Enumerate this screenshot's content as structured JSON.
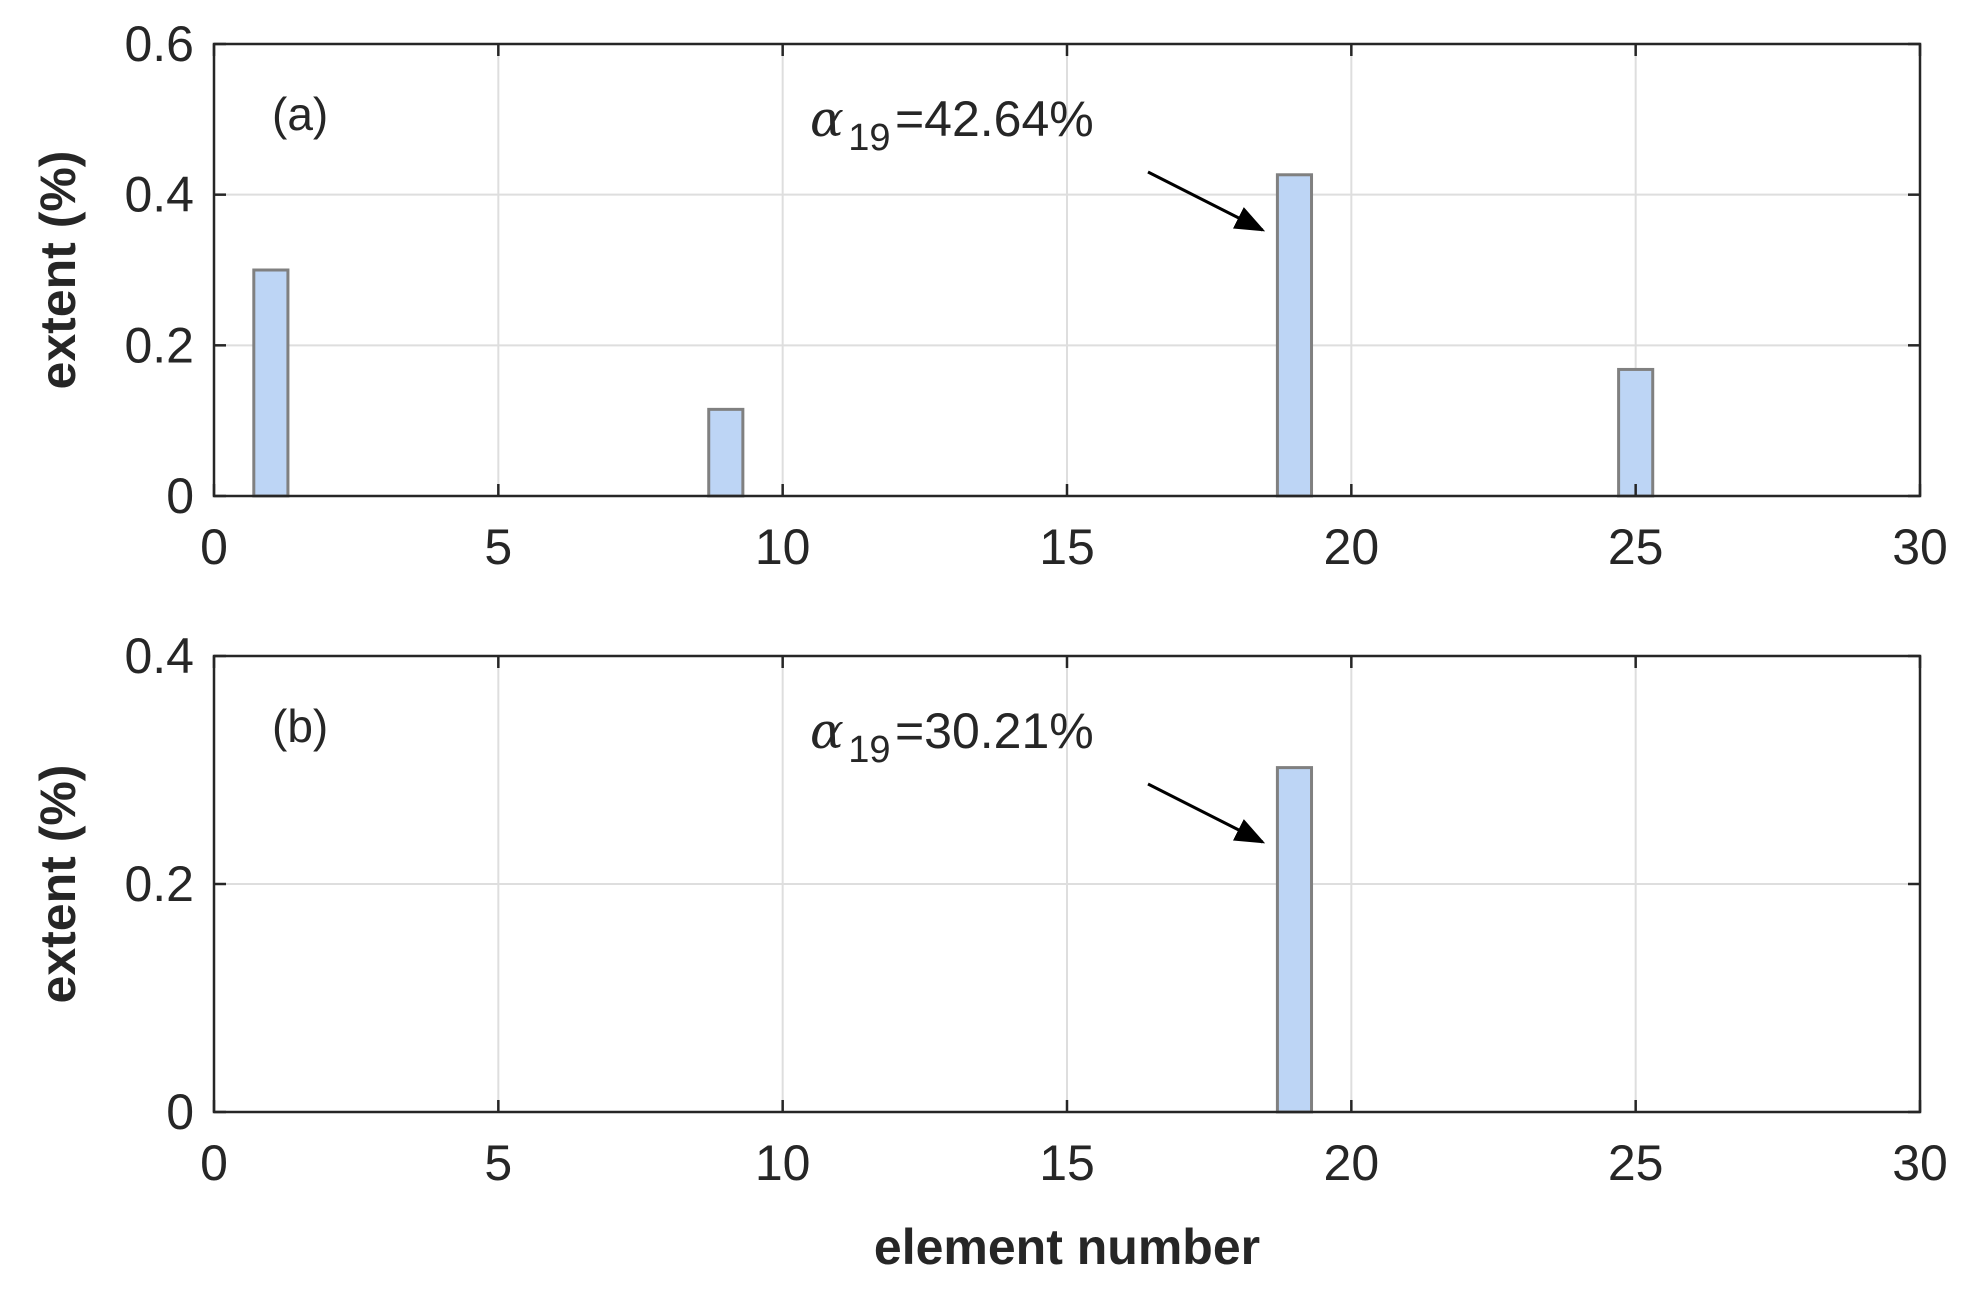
{
  "chart_data": [
    {
      "type": "bar",
      "panel_label": "(a)",
      "xlabel": "",
      "ylabel": "extent (%)",
      "xlim": [
        0,
        30
      ],
      "ylim": [
        0,
        0.6
      ],
      "xticks": [
        "0",
        "5",
        "10",
        "15",
        "20",
        "25",
        "30"
      ],
      "yticks": [
        "0",
        "0.2",
        "0.4",
        "0.6"
      ],
      "grid": true,
      "bar_color": "#bdd5f5",
      "bar_edge_color": "#808080",
      "x": [
        1,
        9,
        19,
        25
      ],
      "values": [
        0.3,
        0.115,
        0.4264,
        0.168
      ],
      "annotation": {
        "symbol": "α",
        "subscript": "19",
        "text": "=42.64%",
        "x": 19,
        "y": 0.4264
      }
    },
    {
      "type": "bar",
      "panel_label": "(b)",
      "xlabel": "element number",
      "ylabel": "extent (%)",
      "xlim": [
        0,
        30
      ],
      "ylim": [
        0,
        0.4
      ],
      "xticks": [
        "0",
        "5",
        "10",
        "15",
        "20",
        "25",
        "30"
      ],
      "yticks": [
        "0",
        "0.2",
        "0.4"
      ],
      "grid": true,
      "bar_color": "#bdd5f5",
      "bar_edge_color": "#808080",
      "x": [
        19
      ],
      "values": [
        0.3021
      ],
      "annotation": {
        "symbol": "α",
        "subscript": "19",
        "text": "=30.21%",
        "x": 19,
        "y": 0.3021
      }
    }
  ]
}
